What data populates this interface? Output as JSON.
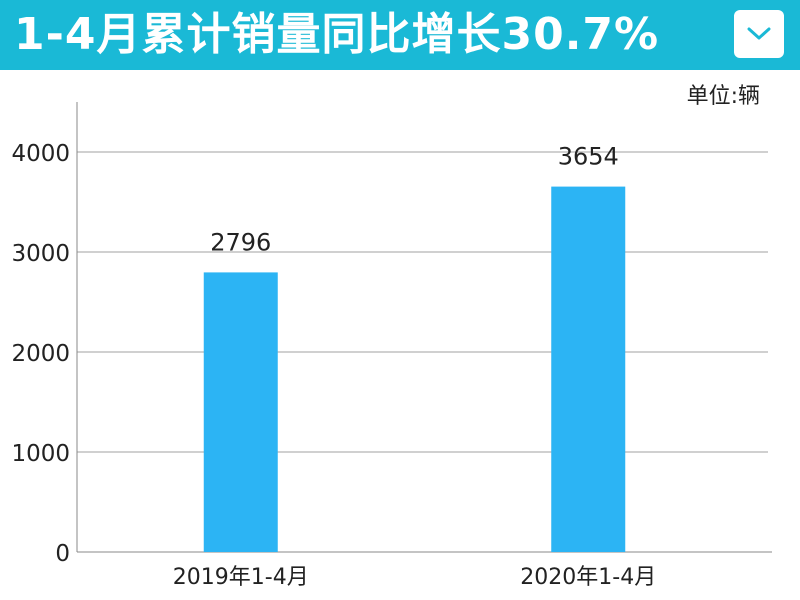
{
  "header": {
    "title": "1-4月累计销量同比增长30.7%",
    "background": "#1ab9d6",
    "dropdown_icon": "chevron-down-icon"
  },
  "unit_label": "单位:辆",
  "chart_data": {
    "type": "bar",
    "categories": [
      "2019年1-4月",
      "2020年1-4月"
    ],
    "values": [
      2796,
      3654
    ],
    "data_labels": [
      "2796",
      "3654"
    ],
    "ylim": [
      0,
      4500
    ],
    "yticks": [
      0,
      1000,
      2000,
      3000,
      4000
    ],
    "ytick_labels": [
      "0",
      "1000",
      "2000",
      "3000",
      "4000"
    ],
    "title": "",
    "xlabel": "",
    "ylabel": "",
    "grid": true,
    "bar_color": "#2cb4f4",
    "gridline_color": "#a0a0a0"
  }
}
